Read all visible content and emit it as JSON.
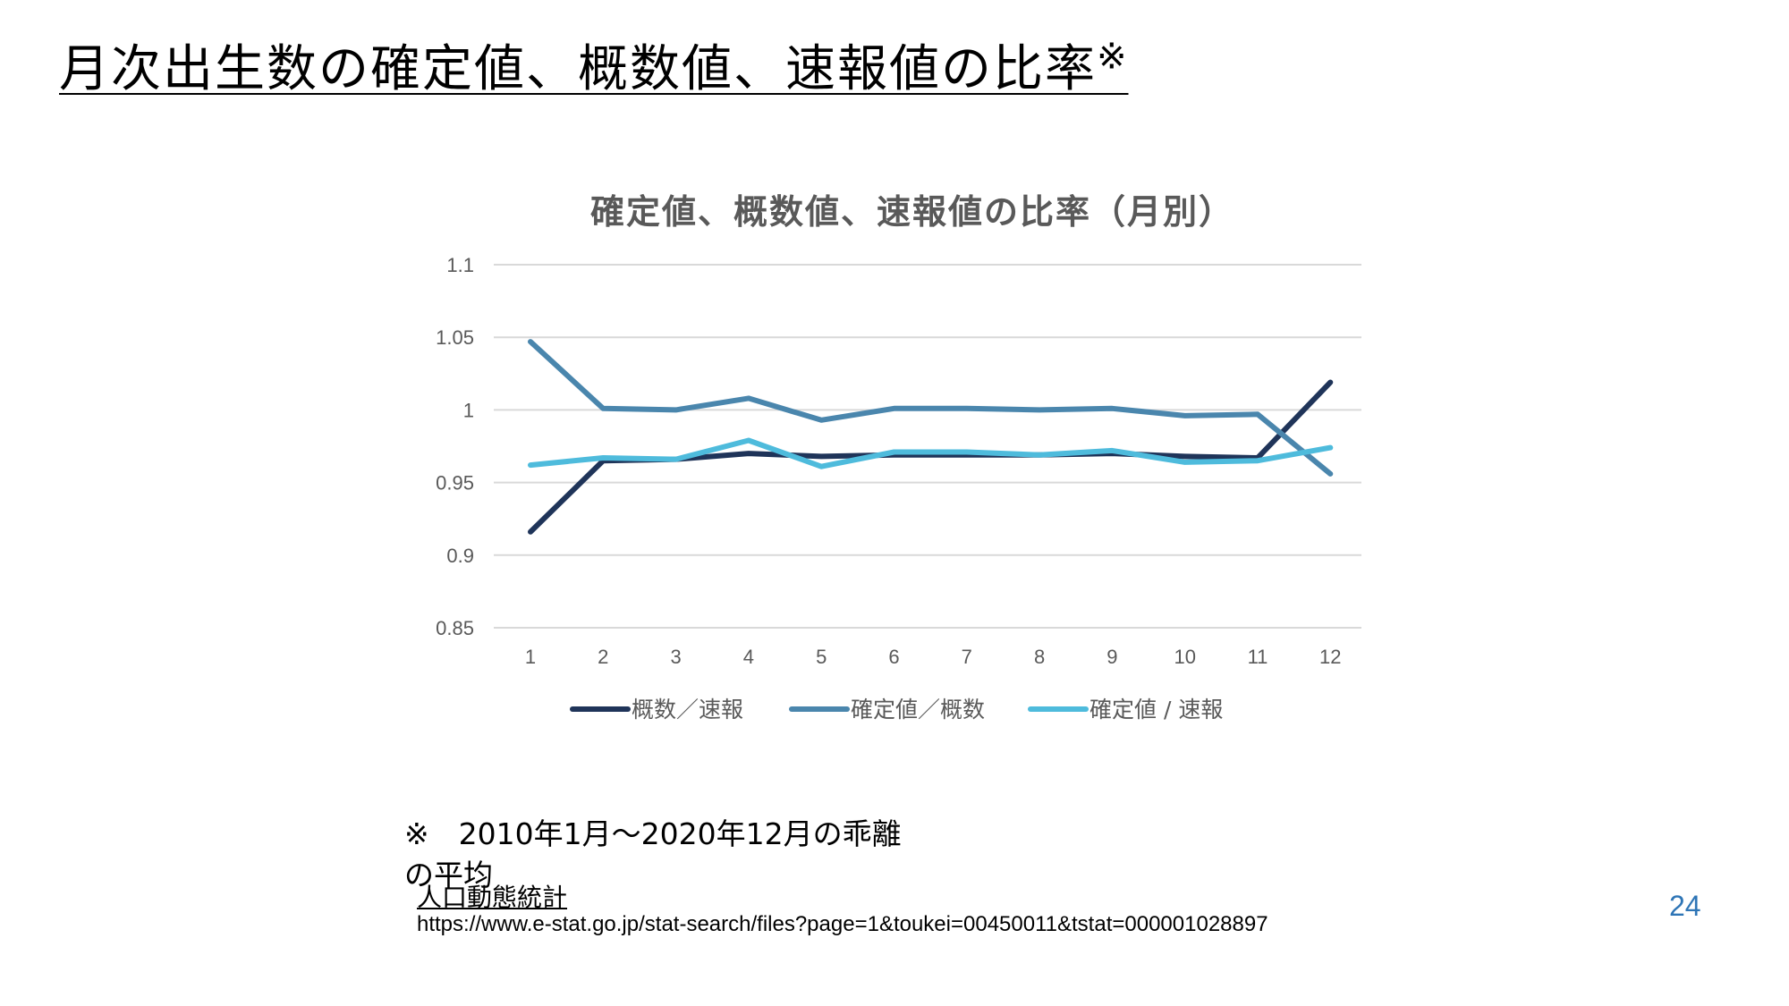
{
  "slide": {
    "title": "月次出生数の確定値、概数値、速報値の比率",
    "title_mark": "※",
    "footnote": "※　2010年1月～2020年12月の乖離の平均",
    "source_name": "人口動態統計",
    "source_url": "https://www.e-stat.go.jp/stat-search/files?page=1&toukei=00450011&tstat=000001028897",
    "page_number": "24"
  },
  "chart_data": {
    "type": "line",
    "title": "確定値、概数値、速報値の比率（月別）",
    "categories": [
      "1",
      "2",
      "3",
      "4",
      "5",
      "6",
      "7",
      "8",
      "9",
      "10",
      "11",
      "12"
    ],
    "ylim": [
      0.85,
      1.1
    ],
    "yticks": [
      {
        "value": 0.85,
        "label": "0.85"
      },
      {
        "value": 0.9,
        "label": "0.9"
      },
      {
        "value": 0.95,
        "label": "0.95"
      },
      {
        "value": 1,
        "label": "1"
      },
      {
        "value": 1.05,
        "label": "1.05"
      },
      {
        "value": 1.1,
        "label": "1.1"
      }
    ],
    "grid": true,
    "legend_position": "bottom",
    "series": [
      {
        "name": "概数／速報",
        "color": "#1f3459",
        "values": [
          0.916,
          0.965,
          0.966,
          0.97,
          0.968,
          0.969,
          0.969,
          0.969,
          0.97,
          0.968,
          0.967,
          1.019
        ]
      },
      {
        "name": "確定値／概数",
        "color": "#4a86ad",
        "values": [
          1.047,
          1.001,
          1.0,
          1.008,
          0.993,
          1.001,
          1.001,
          1.0,
          1.001,
          0.996,
          0.997,
          0.956
        ]
      },
      {
        "name": "確定値 / 速報",
        "color": "#4ebbdc",
        "values": [
          0.962,
          0.967,
          0.966,
          0.979,
          0.961,
          0.971,
          0.971,
          0.969,
          0.972,
          0.964,
          0.965,
          0.974
        ]
      }
    ]
  }
}
